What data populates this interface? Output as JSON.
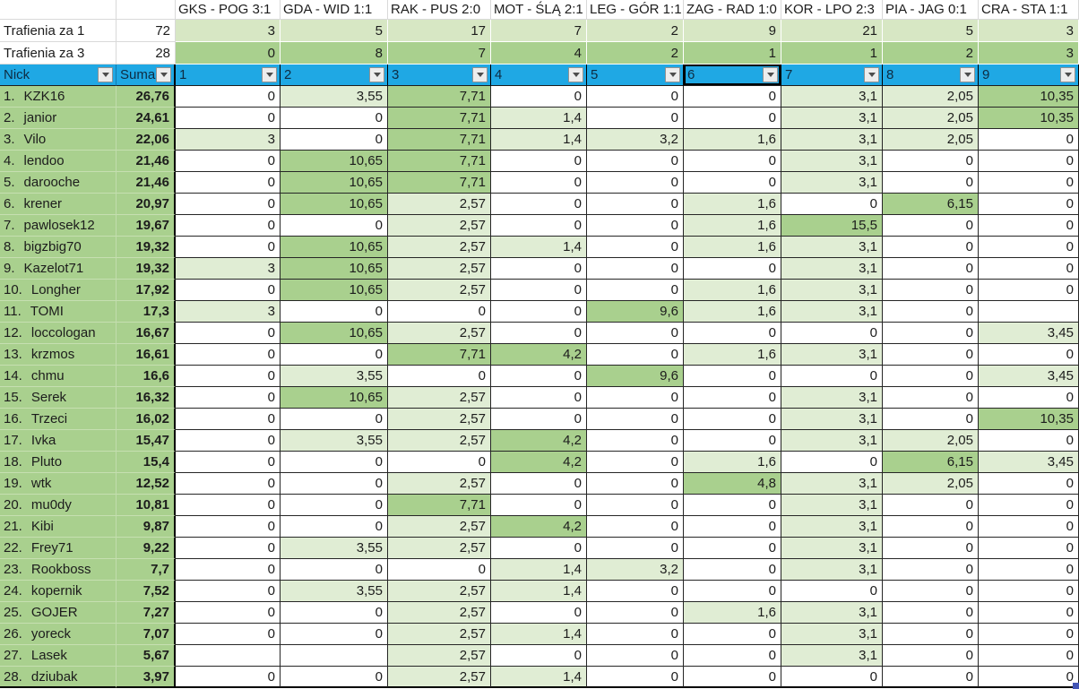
{
  "palette": {
    "filter_blue": "#1fa8e4",
    "sidebar_green": "#a9d08e",
    "score_light_green": "#e0edd4",
    "score_strong_green": "#a9d08e",
    "summary_row1_green": "#d7e7c4",
    "summary_row3_green": "#a9d08e",
    "selection_handle_blue": "#4355b5"
  },
  "matches": [
    "GKS - POG 3:1",
    "GDA - WID 1:1",
    "RAK - PUS 2:0",
    "MOT - ŚLĄ 2:1",
    "LEG - GÓR 1:1",
    "ZAG - RAD 1:0",
    "KOR - LPO 2:3",
    "PIA - JAG 0:1",
    "CRA - STA 1:1"
  ],
  "summary_rows": [
    {
      "label": "Trafienia za 1",
      "total": "72",
      "values": [
        "3",
        "5",
        "17",
        "7",
        "2",
        "9",
        "21",
        "5",
        "3"
      ]
    },
    {
      "label": "Trafienia za 3",
      "total": "28",
      "values": [
        "0",
        "8",
        "7",
        "4",
        "2",
        "1",
        "1",
        "2",
        "3"
      ]
    }
  ],
  "filter_row": {
    "nick_label": "Nick",
    "suma_label": "Suma",
    "numbers": [
      "1",
      "2",
      "3",
      "4",
      "5",
      "6",
      "7",
      "8",
      "9"
    ],
    "selected_number": "6",
    "selected_index": 5
  },
  "players": [
    {
      "rank": "1.",
      "nick": "KZK16",
      "suma": "26,76",
      "values": [
        "0",
        "3,55",
        "7,71",
        "0",
        "0",
        "0",
        "3,1",
        "2,05",
        "10,35"
      ]
    },
    {
      "rank": "2.",
      "nick": "janior",
      "suma": "24,61",
      "values": [
        "0",
        "0",
        "7,71",
        "1,4",
        "0",
        "0",
        "3,1",
        "2,05",
        "10,35"
      ]
    },
    {
      "rank": "3.",
      "nick": "Vilo",
      "suma": "22,06",
      "values": [
        "3",
        "0",
        "7,71",
        "1,4",
        "3,2",
        "1,6",
        "3,1",
        "2,05",
        "0"
      ]
    },
    {
      "rank": "4.",
      "nick": "lendoo",
      "suma": "21,46",
      "values": [
        "0",
        "10,65",
        "7,71",
        "0",
        "0",
        "0",
        "3,1",
        "0",
        "0"
      ]
    },
    {
      "rank": "5.",
      "nick": "darooche",
      "suma": "21,46",
      "values": [
        "0",
        "10,65",
        "7,71",
        "0",
        "0",
        "0",
        "3,1",
        "0",
        "0"
      ]
    },
    {
      "rank": "6.",
      "nick": "krener",
      "suma": "20,97",
      "values": [
        "0",
        "10,65",
        "2,57",
        "0",
        "0",
        "1,6",
        "0",
        "6,15",
        "0"
      ]
    },
    {
      "rank": "7.",
      "nick": "pawlosek12",
      "suma": "19,67",
      "values": [
        "0",
        "0",
        "2,57",
        "0",
        "0",
        "1,6",
        "15,5",
        "0",
        "0"
      ]
    },
    {
      "rank": "8.",
      "nick": "bigzbig70",
      "suma": "19,32",
      "values": [
        "0",
        "10,65",
        "2,57",
        "1,4",
        "0",
        "1,6",
        "3,1",
        "0",
        "0"
      ]
    },
    {
      "rank": "9.",
      "nick": "Kazelot71",
      "suma": "19,32",
      "values": [
        "3",
        "10,65",
        "2,57",
        "0",
        "0",
        "0",
        "3,1",
        "0",
        "0"
      ]
    },
    {
      "rank": "10.",
      "nick": "Longher",
      "suma": "17,92",
      "values": [
        "0",
        "10,65",
        "2,57",
        "0",
        "0",
        "1,6",
        "3,1",
        "0",
        "0"
      ]
    },
    {
      "rank": "11.",
      "nick": "TOMI",
      "suma": "17,3",
      "values": [
        "3",
        "0",
        "0",
        "0",
        "9,6",
        "1,6",
        "3,1",
        "0",
        ""
      ]
    },
    {
      "rank": "12.",
      "nick": "loccologan",
      "suma": "16,67",
      "values": [
        "0",
        "10,65",
        "2,57",
        "0",
        "0",
        "0",
        "0",
        "0",
        "3,45"
      ]
    },
    {
      "rank": "13.",
      "nick": "krzmos",
      "suma": "16,61",
      "values": [
        "0",
        "0",
        "7,71",
        "4,2",
        "0",
        "1,6",
        "3,1",
        "0",
        "0"
      ]
    },
    {
      "rank": "14.",
      "nick": "chmu",
      "suma": "16,6",
      "values": [
        "0",
        "3,55",
        "0",
        "0",
        "9,6",
        "0",
        "0",
        "0",
        "3,45"
      ]
    },
    {
      "rank": "15.",
      "nick": "Serek",
      "suma": "16,32",
      "values": [
        "0",
        "10,65",
        "2,57",
        "0",
        "0",
        "0",
        "3,1",
        "0",
        "0"
      ]
    },
    {
      "rank": "16.",
      "nick": "Trzeci",
      "suma": "16,02",
      "values": [
        "0",
        "0",
        "2,57",
        "0",
        "0",
        "0",
        "3,1",
        "0",
        "10,35"
      ]
    },
    {
      "rank": "17.",
      "nick": "Ivka",
      "suma": "15,47",
      "values": [
        "0",
        "3,55",
        "2,57",
        "4,2",
        "0",
        "0",
        "3,1",
        "2,05",
        "0"
      ]
    },
    {
      "rank": "18.",
      "nick": "Pluto",
      "suma": "15,4",
      "values": [
        "0",
        "0",
        "0",
        "4,2",
        "0",
        "1,6",
        "0",
        "6,15",
        "3,45"
      ]
    },
    {
      "rank": "19.",
      "nick": "wtk",
      "suma": "12,52",
      "values": [
        "0",
        "0",
        "2,57",
        "0",
        "0",
        "4,8",
        "3,1",
        "2,05",
        "0"
      ]
    },
    {
      "rank": "20.",
      "nick": "mu0dy",
      "suma": "10,81",
      "values": [
        "0",
        "0",
        "7,71",
        "0",
        "0",
        "0",
        "3,1",
        "0",
        "0"
      ]
    },
    {
      "rank": "21.",
      "nick": "Kibi",
      "suma": "9,87",
      "values": [
        "0",
        "0",
        "2,57",
        "4,2",
        "0",
        "0",
        "3,1",
        "0",
        "0"
      ]
    },
    {
      "rank": "22.",
      "nick": "Frey71",
      "suma": "9,22",
      "values": [
        "0",
        "3,55",
        "2,57",
        "0",
        "0",
        "0",
        "3,1",
        "0",
        "0"
      ]
    },
    {
      "rank": "23.",
      "nick": "Rookboss",
      "suma": "7,7",
      "values": [
        "0",
        "0",
        "0",
        "1,4",
        "3,2",
        "0",
        "3,1",
        "0",
        "0"
      ]
    },
    {
      "rank": "24.",
      "nick": "kopernik",
      "suma": "7,52",
      "values": [
        "0",
        "3,55",
        "2,57",
        "1,4",
        "0",
        "0",
        "0",
        "0",
        "0"
      ]
    },
    {
      "rank": "25.",
      "nick": "GOJER",
      "suma": "7,27",
      "values": [
        "0",
        "0",
        "2,57",
        "0",
        "0",
        "1,6",
        "3,1",
        "0",
        "0"
      ]
    },
    {
      "rank": "26.",
      "nick": "yoreck",
      "suma": "7,07",
      "values": [
        "0",
        "0",
        "2,57",
        "1,4",
        "0",
        "0",
        "3,1",
        "0",
        "0"
      ]
    },
    {
      "rank": "27.",
      "nick": "Lasek",
      "suma": "5,67",
      "values": [
        "",
        "",
        "2,57",
        "0",
        "0",
        "0",
        "3,1",
        "0",
        "0"
      ]
    },
    {
      "rank": "28.",
      "nick": "dziubak",
      "suma": "3,97",
      "values": [
        "0",
        "0",
        "2,57",
        "1,4",
        "0",
        "0",
        "0",
        "0",
        "0"
      ]
    }
  ]
}
